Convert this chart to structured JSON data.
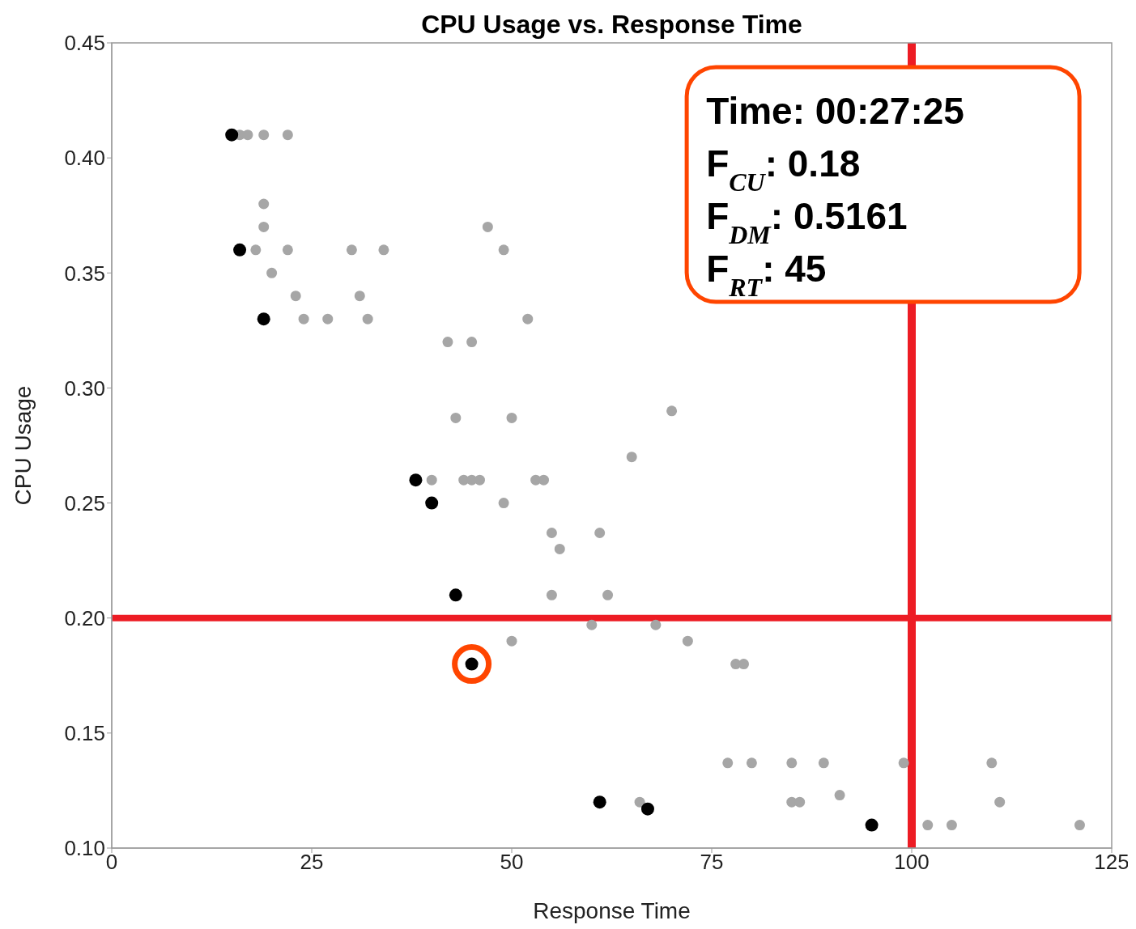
{
  "chart_data": {
    "type": "scatter",
    "title": "CPU Usage vs. Response Time",
    "xlabel": "Response Time",
    "ylabel": "CPU Usage",
    "xlim": [
      0,
      125
    ],
    "xticks": [
      0,
      25,
      50,
      75,
      100,
      125
    ],
    "ylim": [
      0.1,
      0.45
    ],
    "yticks": [
      {
        "value": 0.1,
        "label": "0.10"
      },
      {
        "value": 0.15,
        "label": "0.15"
      },
      {
        "value": 0.2,
        "label": "0.20"
      },
      {
        "value": 0.25,
        "label": "0.25"
      },
      {
        "value": 0.3,
        "label": "0.30"
      },
      {
        "value": 0.35,
        "label": "0.35"
      },
      {
        "value": 0.4,
        "label": "0.40"
      },
      {
        "value": 0.45,
        "label": "0.45"
      }
    ],
    "grid": false,
    "legend": false,
    "marker": "circle",
    "series": [
      {
        "color": "#a6a6a6",
        "x": [
          16,
          17,
          19,
          22,
          19,
          19,
          18,
          22,
          20,
          23,
          24,
          27,
          30,
          31,
          32,
          34,
          47,
          49,
          52,
          42,
          45,
          43,
          50,
          70,
          65,
          40,
          44,
          45,
          46,
          53,
          54,
          49,
          55,
          61,
          56,
          55,
          62,
          60,
          68,
          50,
          72,
          78,
          79,
          77,
          80,
          85,
          89,
          99,
          110,
          66,
          85,
          86,
          91,
          111,
          102,
          105,
          121
        ],
        "values": [
          0.41,
          0.41,
          0.41,
          0.41,
          0.38,
          0.37,
          0.36,
          0.36,
          0.35,
          0.34,
          0.33,
          0.33,
          0.36,
          0.34,
          0.33,
          0.36,
          0.37,
          0.36,
          0.33,
          0.32,
          0.32,
          0.287,
          0.287,
          0.29,
          0.27,
          0.26,
          0.26,
          0.26,
          0.26,
          0.26,
          0.26,
          0.25,
          0.237,
          0.237,
          0.23,
          0.21,
          0.21,
          0.197,
          0.197,
          0.19,
          0.19,
          0.18,
          0.18,
          0.137,
          0.137,
          0.137,
          0.137,
          0.137,
          0.137,
          0.12,
          0.12,
          0.12,
          0.123,
          0.12,
          0.11,
          0.11,
          0.11
        ]
      },
      {
        "color": "#000000",
        "x": [
          15,
          16,
          19,
          38,
          40,
          43,
          61,
          67,
          95
        ],
        "values": [
          0.41,
          0.36,
          0.33,
          0.26,
          0.25,
          0.21,
          0.12,
          0.117,
          0.11
        ]
      },
      {
        "color": "#ff4500",
        "x": [
          45
        ],
        "values": [
          0.18
        ]
      }
    ],
    "ref_lines": [
      {
        "axis": "y",
        "value": 0.2,
        "color": "#ed1c24"
      },
      {
        "axis": "x",
        "value": 100,
        "color": "#ed1c24"
      }
    ],
    "annotations": [
      "Time: 00:27:25",
      "F$_{CU}$: 0.18",
      "F$_{DM}$: 0.5161",
      "F$_{RT}$: 45"
    ]
  }
}
